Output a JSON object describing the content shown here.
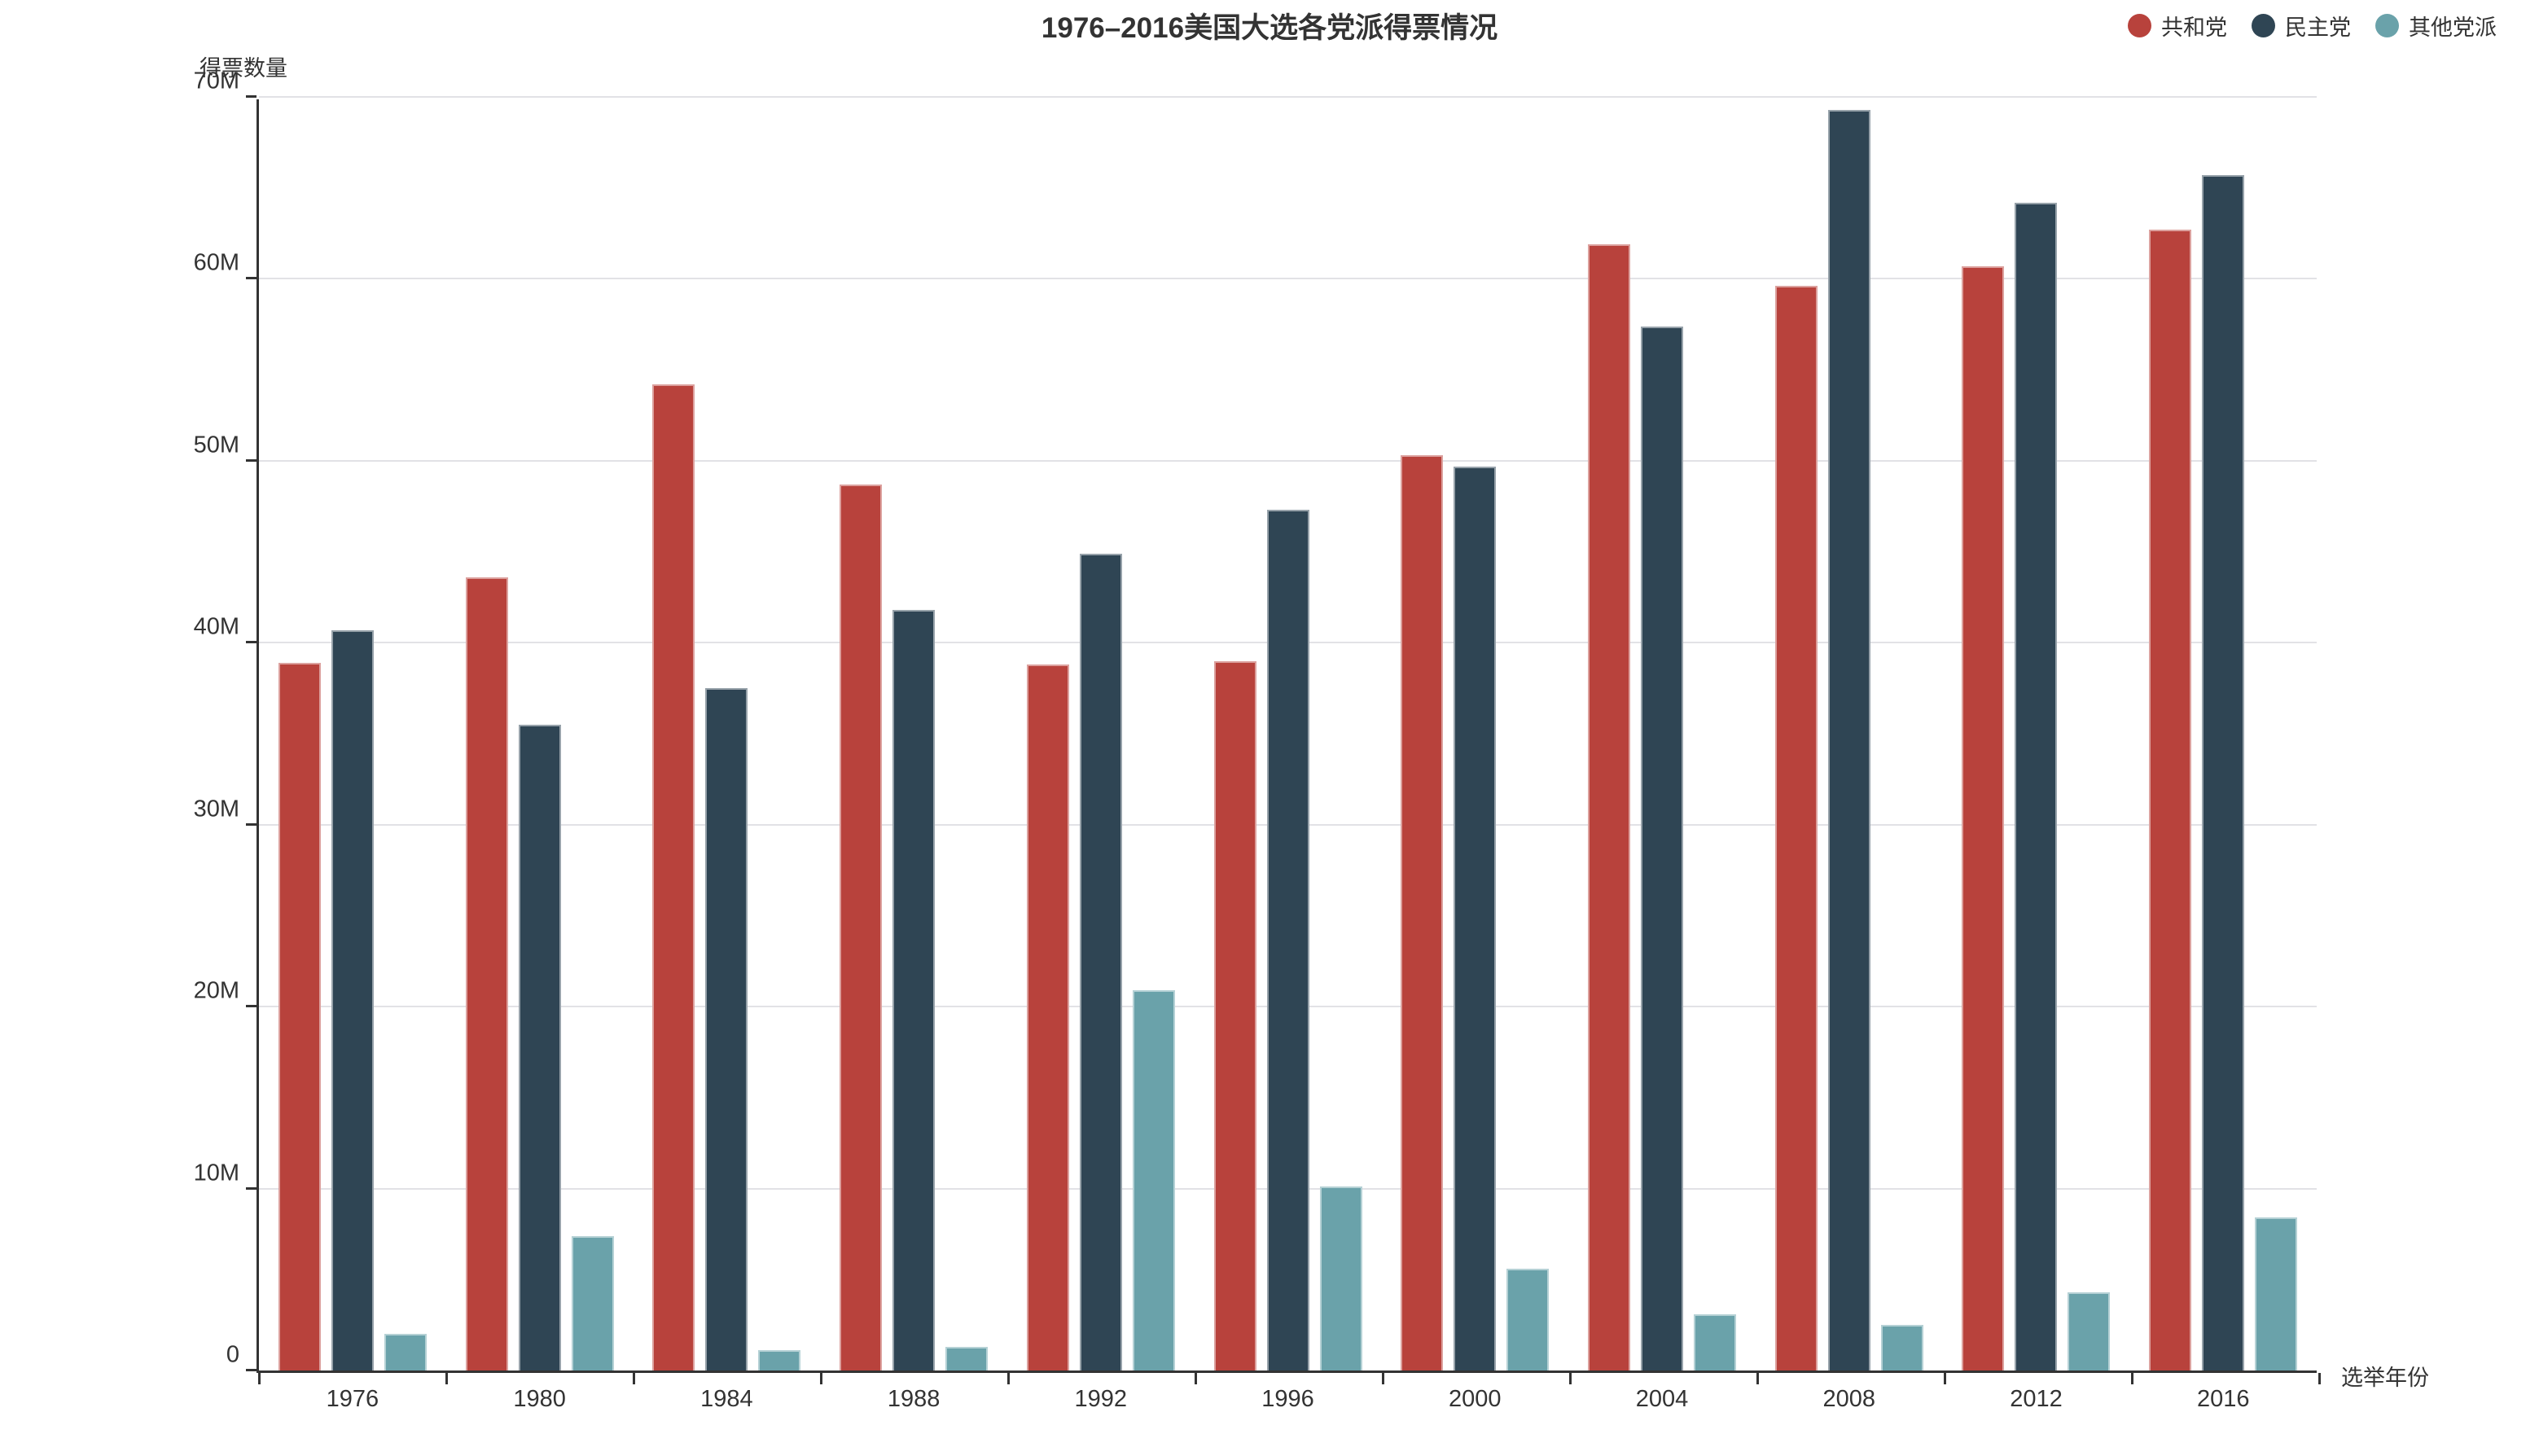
{
  "chart_data": {
    "type": "bar",
    "title": "1976–2016美国大选各党派得票情况",
    "ylabel": "得票数量",
    "xlabel": "选举年份",
    "unit": "millions of votes",
    "categories": [
      "1976",
      "1980",
      "1984",
      "1988",
      "1992",
      "1996",
      "2000",
      "2004",
      "2008",
      "2012",
      "2016"
    ],
    "series": [
      {
        "name": "共和党",
        "color": "#b8423c",
        "values": [
          38.9,
          43.6,
          54.2,
          48.7,
          38.8,
          39.0,
          50.3,
          61.9,
          59.6,
          60.7,
          62.7
        ]
      },
      {
        "name": "民主党",
        "color": "#2f4554",
        "values": [
          40.7,
          35.5,
          37.5,
          41.8,
          44.9,
          47.3,
          49.7,
          57.4,
          69.3,
          64.2,
          65.7
        ]
      },
      {
        "name": "其他党派",
        "color": "#6aa2aa",
        "values": [
          2.0,
          7.4,
          1.1,
          1.3,
          20.9,
          10.1,
          5.6,
          3.1,
          2.5,
          4.3,
          8.4
        ]
      }
    ],
    "ylim": [
      0,
      70
    ],
    "ytick_step": 10,
    "y_tick_labels": [
      "0",
      "10M",
      "20M",
      "30M",
      "40M",
      "50M",
      "60M",
      "70M"
    ],
    "grid": true,
    "legend_position": "top-right",
    "colors": {
      "grid_line": "#e2e2e6",
      "axis_line": "#333333",
      "text": "#333333"
    }
  }
}
